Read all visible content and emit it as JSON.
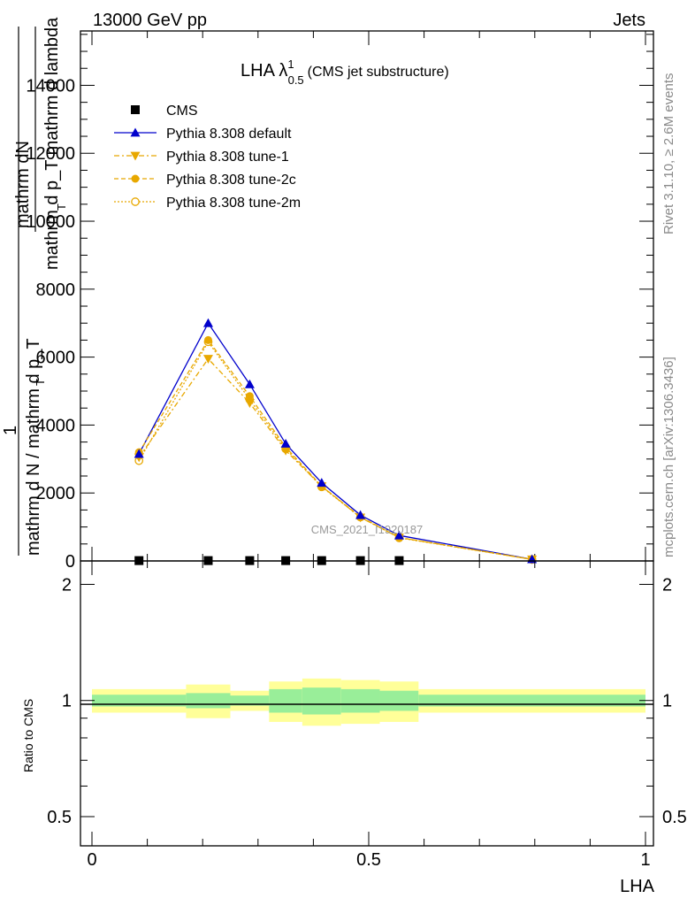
{
  "header": {
    "left": "13000 GeV pp",
    "right": "Jets"
  },
  "side_text": {
    "rivet": "Rivet 3.1.10, ≥ 2.6M events",
    "mcplots": "mcplots.cern.ch [arXiv:1306.3436]"
  },
  "colors": {
    "cms": "#000000",
    "default": "#0000cc",
    "tune": "#e8a800",
    "band_inner": "#99ee99",
    "band_outer": "#ffff99"
  },
  "chart_data": {
    "type": "line",
    "title_main": "LHA λ",
    "title_sup": "1",
    "title_sub": "0.5",
    "title_tail": "(CMS jet substructure)",
    "xlabel": "LHA",
    "ylabel_top_num": "mathrm dN",
    "ylabel_top_den": "mathrm d p_T mathrm d lambda",
    "ylabel_top_sub": "T",
    "ylabel_frac_num": "1",
    "ylabel_frac_den": "mathrm d N / mathrm d p_T",
    "ylabel_frac_sub": "T",
    "ratio_ylabel": "Ratio to CMS",
    "watermark": "CMS_2021_I1920187",
    "xlim": [
      0,
      1
    ],
    "ylim": [
      0,
      15600
    ],
    "ratio_ylim": [
      0.42,
      2.3
    ],
    "x_ticks": [
      0,
      0.5,
      1
    ],
    "x_tick_labels": [
      "0",
      "0.5",
      "1"
    ],
    "y_ticks": [
      0,
      2000,
      4000,
      6000,
      8000,
      10000,
      12000,
      14000
    ],
    "y_tick_labels": [
      "0",
      "2000",
      "4000",
      "6000",
      "8000",
      "10000",
      "12000",
      "14000"
    ],
    "ratio_ticks": [
      0.5,
      1,
      2
    ],
    "ratio_tick_labels": [
      "0.5",
      "1",
      "2"
    ],
    "legend_position": "top-left",
    "x": [
      0.085,
      0.21,
      0.285,
      0.35,
      0.415,
      0.485,
      0.555,
      0.795
    ],
    "series": [
      {
        "name": "CMS",
        "marker": "square",
        "values": [
          10,
          10,
          10,
          10,
          10,
          10,
          10,
          null
        ]
      },
      {
        "name": "Pythia 8.308 default",
        "marker": "triangle-up",
        "dash": "",
        "values": [
          3150,
          7000,
          5200,
          3450,
          2300,
          1350,
          750,
          50
        ]
      },
      {
        "name": "Pythia 8.308 tune-1",
        "marker": "triangle-down",
        "dash": "6,3,2,3",
        "values": [
          3050,
          5950,
          4650,
          3250,
          2200,
          1280,
          690,
          45
        ]
      },
      {
        "name": "Pythia 8.308 tune-2c",
        "marker": "circle",
        "dash": "5,3",
        "values": [
          3200,
          6500,
          4850,
          3350,
          2200,
          1300,
          690,
          45
        ]
      },
      {
        "name": "Pythia 8.308 tune-2m",
        "marker": "circle-open",
        "dash": "2,2",
        "values": [
          2950,
          6450,
          4750,
          3300,
          2180,
          1290,
          680,
          45
        ]
      }
    ],
    "ratio_band": [
      {
        "x0": 0.0,
        "x1": 0.17,
        "inner": 0.035,
        "outer": 0.07
      },
      {
        "x0": 0.17,
        "x1": 0.25,
        "inner": 0.045,
        "outer": 0.1
      },
      {
        "x0": 0.25,
        "x1": 0.32,
        "inner": 0.03,
        "outer": 0.06
      },
      {
        "x0": 0.32,
        "x1": 0.38,
        "inner": 0.07,
        "outer": 0.12
      },
      {
        "x0": 0.38,
        "x1": 0.45,
        "inner": 0.08,
        "outer": 0.14
      },
      {
        "x0": 0.45,
        "x1": 0.52,
        "inner": 0.07,
        "outer": 0.13
      },
      {
        "x0": 0.52,
        "x1": 0.59,
        "inner": 0.06,
        "outer": 0.12
      },
      {
        "x0": 0.59,
        "x1": 1.0,
        "inner": 0.035,
        "outer": 0.07
      }
    ]
  }
}
